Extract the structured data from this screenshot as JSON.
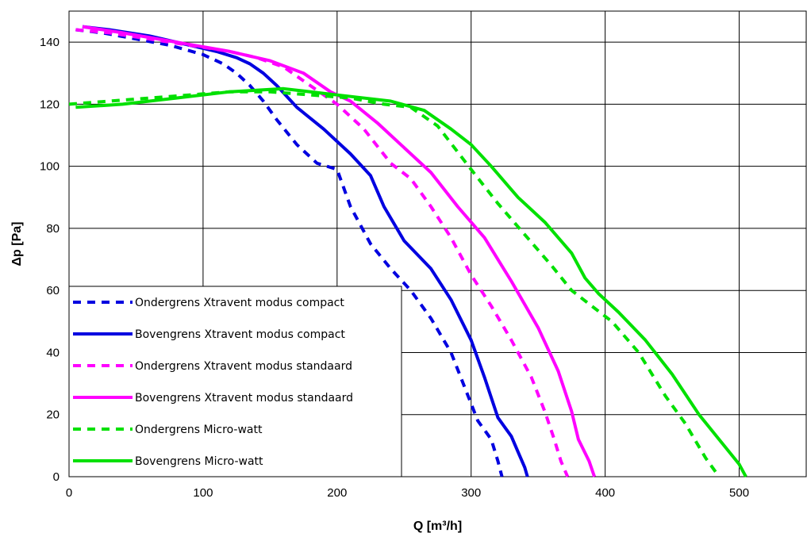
{
  "chart_data": {
    "type": "line",
    "xlabel": "Q [m³/h]",
    "ylabel": "Δp [Pa]",
    "xlim": [
      0,
      550
    ],
    "ylim": [
      0,
      150
    ],
    "xticks": [
      0,
      100,
      200,
      300,
      400,
      500
    ],
    "yticks": [
      0,
      20,
      40,
      60,
      80,
      100,
      120,
      140
    ],
    "grid": true,
    "legend_position": "bottom-left",
    "series": [
      {
        "name": "Ondergrens Xtravent modus compact",
        "color": "#0000e0",
        "style": "dashed",
        "x": [
          5,
          25,
          50,
          75,
          100,
          115,
          125,
          135,
          145,
          155,
          170,
          185,
          200,
          210,
          225,
          240,
          255,
          270,
          285,
          295,
          305,
          315,
          320,
          323
        ],
        "y": [
          144,
          143,
          141,
          139,
          136,
          133,
          130,
          126,
          121,
          115,
          107,
          101,
          99,
          87,
          75,
          67,
          60,
          51,
          40,
          29,
          18,
          12,
          5,
          0
        ]
      },
      {
        "name": "Bovengrens Xtravent modus compact",
        "color": "#0000e0",
        "style": "solid",
        "x": [
          10,
          30,
          60,
          90,
          110,
          125,
          135,
          145,
          155,
          170,
          190,
          210,
          225,
          235,
          250,
          270,
          285,
          300,
          310,
          320,
          330,
          335,
          340,
          342
        ],
        "y": [
          145,
          144,
          142,
          139,
          137,
          135,
          133,
          130,
          126,
          119,
          112,
          104,
          97,
          87,
          76,
          67,
          57,
          44,
          32,
          19,
          13,
          8,
          3,
          0
        ]
      },
      {
        "name": "Ondergrens Xtravent modus standaard",
        "color": "#ff00ff",
        "style": "dashed",
        "x": [
          5,
          30,
          60,
          90,
          120,
          140,
          160,
          180,
          200,
          220,
          240,
          255,
          270,
          285,
          300,
          315,
          330,
          345,
          355,
          362,
          367,
          372
        ],
        "y": [
          144,
          143,
          141,
          139,
          137,
          135,
          132,
          126,
          120,
          112,
          101,
          96,
          87,
          77,
          65,
          55,
          44,
          32,
          21,
          12,
          5,
          0
        ]
      },
      {
        "name": "Bovengrens Xtravent modus standaard",
        "color": "#ff00ff",
        "style": "solid",
        "x": [
          10,
          40,
          80,
          120,
          150,
          175,
          195,
          210,
          230,
          250,
          270,
          290,
          310,
          330,
          350,
          365,
          375,
          380,
          388,
          392
        ],
        "y": [
          145,
          143,
          140,
          137,
          134,
          130,
          124,
          121,
          114,
          106,
          98,
          87,
          77,
          63,
          48,
          34,
          21,
          12,
          5,
          0
        ]
      },
      {
        "name": "Ondergrens Micro-watt",
        "color": "#00e000",
        "style": "dashed",
        "x": [
          0,
          30,
          60,
          90,
          120,
          150,
          180,
          210,
          235,
          255,
          275,
          300,
          320,
          340,
          360,
          375,
          390,
          405,
          425,
          445,
          460,
          475,
          485
        ],
        "y": [
          120,
          121,
          122,
          123,
          124,
          124,
          123,
          122,
          120,
          119,
          113,
          99,
          88,
          78,
          68,
          60,
          55,
          50,
          40,
          26,
          17,
          6,
          0
        ]
      },
      {
        "name": "Bovengrens Micro-watt",
        "color": "#00e000",
        "style": "solid",
        "x": [
          5,
          40,
          80,
          120,
          160,
          200,
          240,
          265,
          285,
          300,
          315,
          335,
          355,
          375,
          385,
          395,
          410,
          430,
          450,
          470,
          485,
          500,
          505
        ],
        "y": [
          119,
          120,
          122,
          124,
          125,
          123,
          121,
          118,
          112,
          107,
          100,
          90,
          82,
          72,
          64,
          59,
          53,
          44,
          33,
          20,
          12,
          4,
          0
        ]
      }
    ]
  }
}
